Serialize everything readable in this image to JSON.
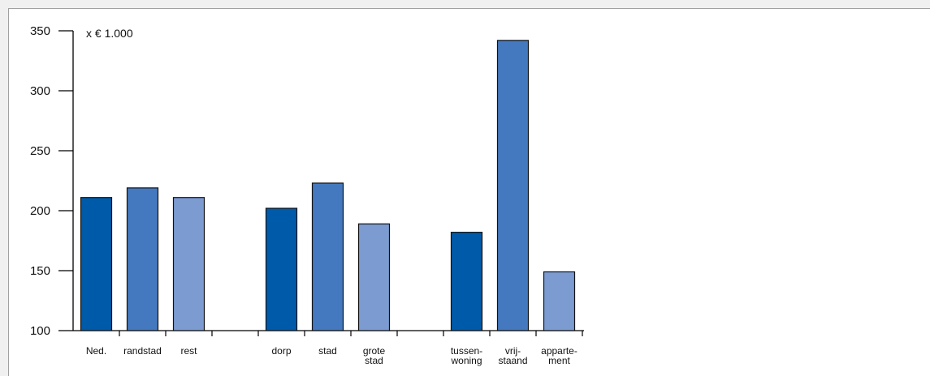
{
  "chart_data": {
    "type": "bar",
    "unit_label": "x € 1.000",
    "ylim": [
      100,
      350
    ],
    "yticks": [
      100,
      150,
      200,
      250,
      300,
      350
    ],
    "grid": false,
    "legend": "none",
    "colors": [
      "#005aaa",
      "#4479bf",
      "#7b9bd1"
    ],
    "categories": [
      {
        "lines": [
          "Ned."
        ],
        "value": 211,
        "color_index": 0
      },
      {
        "lines": [
          "randstad"
        ],
        "value": 219,
        "color_index": 1
      },
      {
        "lines": [
          "rest"
        ],
        "value": 211,
        "color_index": 2
      },
      {
        "lines": [
          "dorp"
        ],
        "value": 202,
        "color_index": 0
      },
      {
        "lines": [
          "stad"
        ],
        "value": 223,
        "color_index": 1
      },
      {
        "lines": [
          "grote",
          "stad"
        ],
        "value": 189,
        "color_index": 2
      },
      {
        "lines": [
          "tussen-",
          "woning"
        ],
        "value": 182,
        "color_index": 0
      },
      {
        "lines": [
          "vrij-",
          "staand"
        ],
        "value": 342,
        "color_index": 1
      },
      {
        "lines": [
          "apparte-",
          "ment"
        ],
        "value": 149,
        "color_index": 2
      }
    ],
    "groups": [
      [
        0,
        1,
        2
      ],
      [
        3,
        4,
        5
      ],
      [
        6,
        7,
        8
      ]
    ]
  }
}
